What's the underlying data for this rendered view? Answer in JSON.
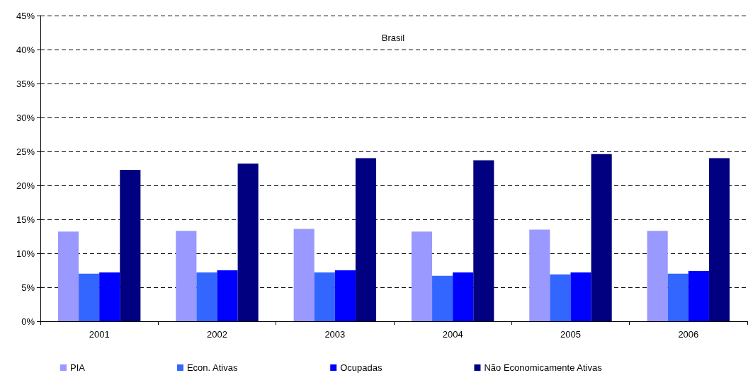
{
  "chart_data": {
    "type": "bar",
    "title": "Brasil",
    "categories": [
      "2001",
      "2002",
      "2003",
      "2004",
      "2005",
      "2006"
    ],
    "series": [
      {
        "name": "PIA",
        "color": "#9999ff",
        "values": [
          13.2,
          13.3,
          13.6,
          13.2,
          13.5,
          13.3
        ]
      },
      {
        "name": "Econ. Ativas",
        "color": "#3366ff",
        "values": [
          7.0,
          7.2,
          7.2,
          6.7,
          6.9,
          7.0
        ]
      },
      {
        "name": "Ocupadas",
        "color": "#0000ff",
        "values": [
          7.2,
          7.5,
          7.5,
          7.2,
          7.2,
          7.4
        ]
      },
      {
        "name": "Não Economicamente Ativas",
        "color": "#000080",
        "values": [
          22.3,
          23.2,
          24.0,
          23.7,
          24.6,
          24.0
        ]
      }
    ],
    "ylim": [
      0,
      45
    ],
    "yticks": [
      {
        "value": 0,
        "label": "0%"
      },
      {
        "value": 5,
        "label": "5%"
      },
      {
        "value": 10,
        "label": "10%"
      },
      {
        "value": 15,
        "label": "15%"
      },
      {
        "value": 20,
        "label": "20%"
      },
      {
        "value": 25,
        "label": "25%"
      },
      {
        "value": 30,
        "label": "30%"
      },
      {
        "value": 35,
        "label": "35%"
      },
      {
        "value": 40,
        "label": "40%"
      },
      {
        "value": 45,
        "label": "45%"
      }
    ],
    "grid": "y",
    "legend": "bottom"
  }
}
